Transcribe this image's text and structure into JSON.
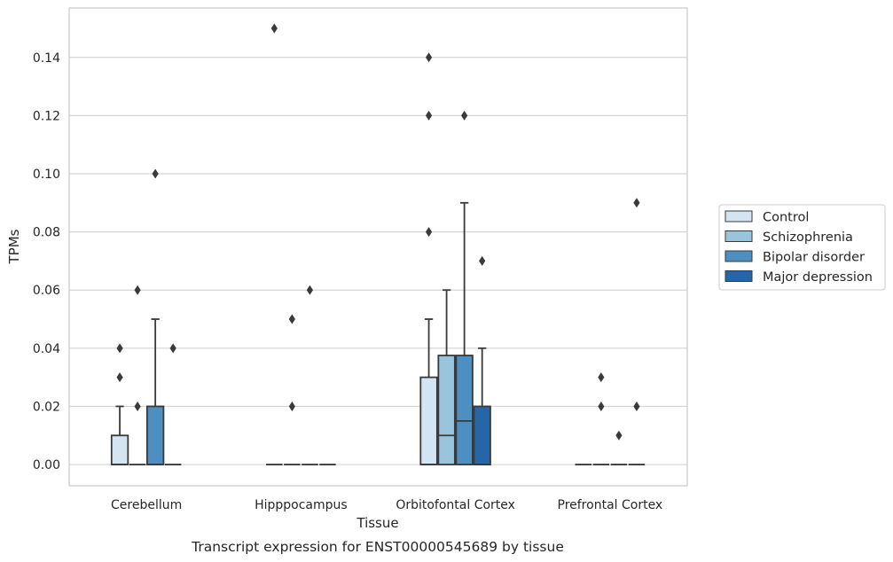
{
  "chart_data": {
    "type": "boxplot",
    "caption": "Transcript expression for ENST00000545689 by tissue",
    "xlabel": "Tissue",
    "ylabel": "TPMs",
    "ylim": [
      -0.0073,
      0.157
    ],
    "yticks": [
      "0.00",
      "0.02",
      "0.04",
      "0.06",
      "0.08",
      "0.10",
      "0.12",
      "0.14"
    ],
    "grid": true,
    "legend_position": "right",
    "categories": [
      "Cerebellum",
      "Hipppocampus",
      "Orbitofontal Cortex",
      "Prefrontal Cortex"
    ],
    "series": [
      {
        "name": "Control",
        "color": "#d3e4f3",
        "boxes": [
          {
            "q1": 0,
            "median": 0,
            "q3": 0.01,
            "whislo": 0,
            "whishi": 0.02,
            "fliers": [
              0.03,
              0.04
            ]
          },
          {
            "q1": 0,
            "median": 0,
            "q3": 0,
            "whislo": 0,
            "whishi": 0,
            "fliers": [
              0.15
            ]
          },
          {
            "q1": 0,
            "median": 0,
            "q3": 0.03,
            "whislo": 0,
            "whishi": 0.05,
            "fliers": [
              0.08,
              0.12,
              0.14
            ]
          },
          {
            "q1": 0,
            "median": 0,
            "q3": 0,
            "whislo": 0,
            "whishi": 0,
            "fliers": []
          }
        ]
      },
      {
        "name": "Schizophrenia",
        "color": "#98c4de",
        "boxes": [
          {
            "q1": 0,
            "median": 0,
            "q3": 0,
            "whislo": 0,
            "whishi": 0,
            "fliers": [
              0.02,
              0.06
            ]
          },
          {
            "q1": 0,
            "median": 0,
            "q3": 0,
            "whislo": 0,
            "whishi": 0,
            "fliers": [
              0.02,
              0.05
            ]
          },
          {
            "q1": 0,
            "median": 0.01,
            "q3": 0.0375,
            "whislo": 0,
            "whishi": 0.06,
            "fliers": []
          },
          {
            "q1": 0,
            "median": 0,
            "q3": 0,
            "whislo": 0,
            "whishi": 0,
            "fliers": [
              0.02,
              0.03
            ]
          }
        ]
      },
      {
        "name": "Bipolar disorder",
        "color": "#4c8fc0",
        "boxes": [
          {
            "q1": 0,
            "median": 0,
            "q3": 0.02,
            "whislo": 0,
            "whishi": 0.05,
            "fliers": [
              0.1
            ]
          },
          {
            "q1": 0,
            "median": 0,
            "q3": 0,
            "whislo": 0,
            "whishi": 0,
            "fliers": [
              0.06
            ]
          },
          {
            "q1": 0,
            "median": 0.015,
            "q3": 0.0375,
            "whislo": 0,
            "whishi": 0.09,
            "fliers": [
              0.12
            ]
          },
          {
            "q1": 0,
            "median": 0,
            "q3": 0,
            "whislo": 0,
            "whishi": 0,
            "fliers": [
              0.01
            ]
          }
        ]
      },
      {
        "name": "Major depression",
        "color": "#2466a8",
        "boxes": [
          {
            "q1": 0,
            "median": 0,
            "q3": 0,
            "whislo": 0,
            "whishi": 0,
            "fliers": [
              0.04
            ]
          },
          {
            "q1": 0,
            "median": 0,
            "q3": 0,
            "whislo": 0,
            "whishi": 0,
            "fliers": []
          },
          {
            "q1": 0,
            "median": 0,
            "q3": 0.02,
            "whislo": 0,
            "whishi": 0.04,
            "fliers": [
              0.07
            ]
          },
          {
            "q1": 0,
            "median": 0,
            "q3": 0,
            "whislo": 0,
            "whishi": 0,
            "fliers": [
              0.02,
              0.09
            ]
          }
        ]
      }
    ]
  }
}
